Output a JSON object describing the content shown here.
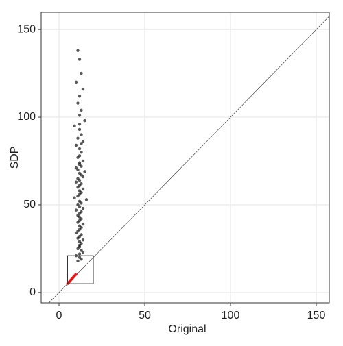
{
  "chart_data": {
    "type": "scatter",
    "xlabel": "Original",
    "ylabel": "SDP",
    "xlim": [
      -10.4,
      157.6
    ],
    "ylim": [
      -5.9,
      159.8
    ],
    "xticks": [
      0,
      50,
      100,
      150
    ],
    "yticks": [
      0,
      50,
      100,
      150
    ],
    "grid": true,
    "diagonal": true,
    "box": {
      "x": [
        5,
        20
      ],
      "y": [
        5,
        21
      ]
    },
    "series": [
      {
        "color": "#000000",
        "x": [
          11,
          12,
          13,
          10,
          14,
          12,
          11,
          13,
          12,
          15,
          9,
          12,
          13,
          11,
          14,
          10,
          12,
          13,
          12,
          11,
          14,
          12,
          13,
          10,
          11,
          15,
          12,
          13,
          14,
          11,
          12,
          10,
          13,
          12,
          11,
          14,
          12,
          13,
          12,
          11,
          9,
          16,
          12,
          13,
          11,
          12,
          14,
          10,
          13,
          12,
          11,
          12,
          13,
          12,
          11,
          14,
          12,
          13,
          12,
          11,
          10,
          13,
          12,
          11,
          14,
          12,
          13,
          12,
          12,
          11,
          13,
          14,
          12,
          10,
          12,
          13,
          11,
          12,
          13,
          12
        ],
        "values": [
          138,
          133,
          125,
          120,
          116,
          112,
          108,
          104,
          101,
          98,
          95,
          93,
          90,
          88,
          86,
          84,
          82,
          80,
          78,
          77,
          75,
          74,
          72,
          71,
          70,
          69,
          68,
          67,
          66,
          65,
          64,
          63,
          62,
          61,
          60,
          59,
          58,
          57,
          56,
          55,
          54,
          53,
          52,
          51,
          50,
          49,
          48,
          47,
          46,
          45,
          44,
          43,
          42,
          41,
          40,
          39,
          38,
          37,
          36,
          35,
          34,
          33,
          32,
          31,
          30,
          29,
          28,
          27,
          26,
          25,
          24,
          23,
          22,
          21,
          20,
          19,
          18,
          96,
          85,
          73
        ]
      },
      {
        "color": "#e00000",
        "x": [
          5,
          5.5,
          6,
          6.5,
          7,
          7.5,
          8,
          8.5,
          9,
          9.5,
          10
        ],
        "values": [
          5,
          5.6,
          6.1,
          6.7,
          7.2,
          7.8,
          8.3,
          8.9,
          9.4,
          10,
          10.5
        ]
      }
    ]
  }
}
